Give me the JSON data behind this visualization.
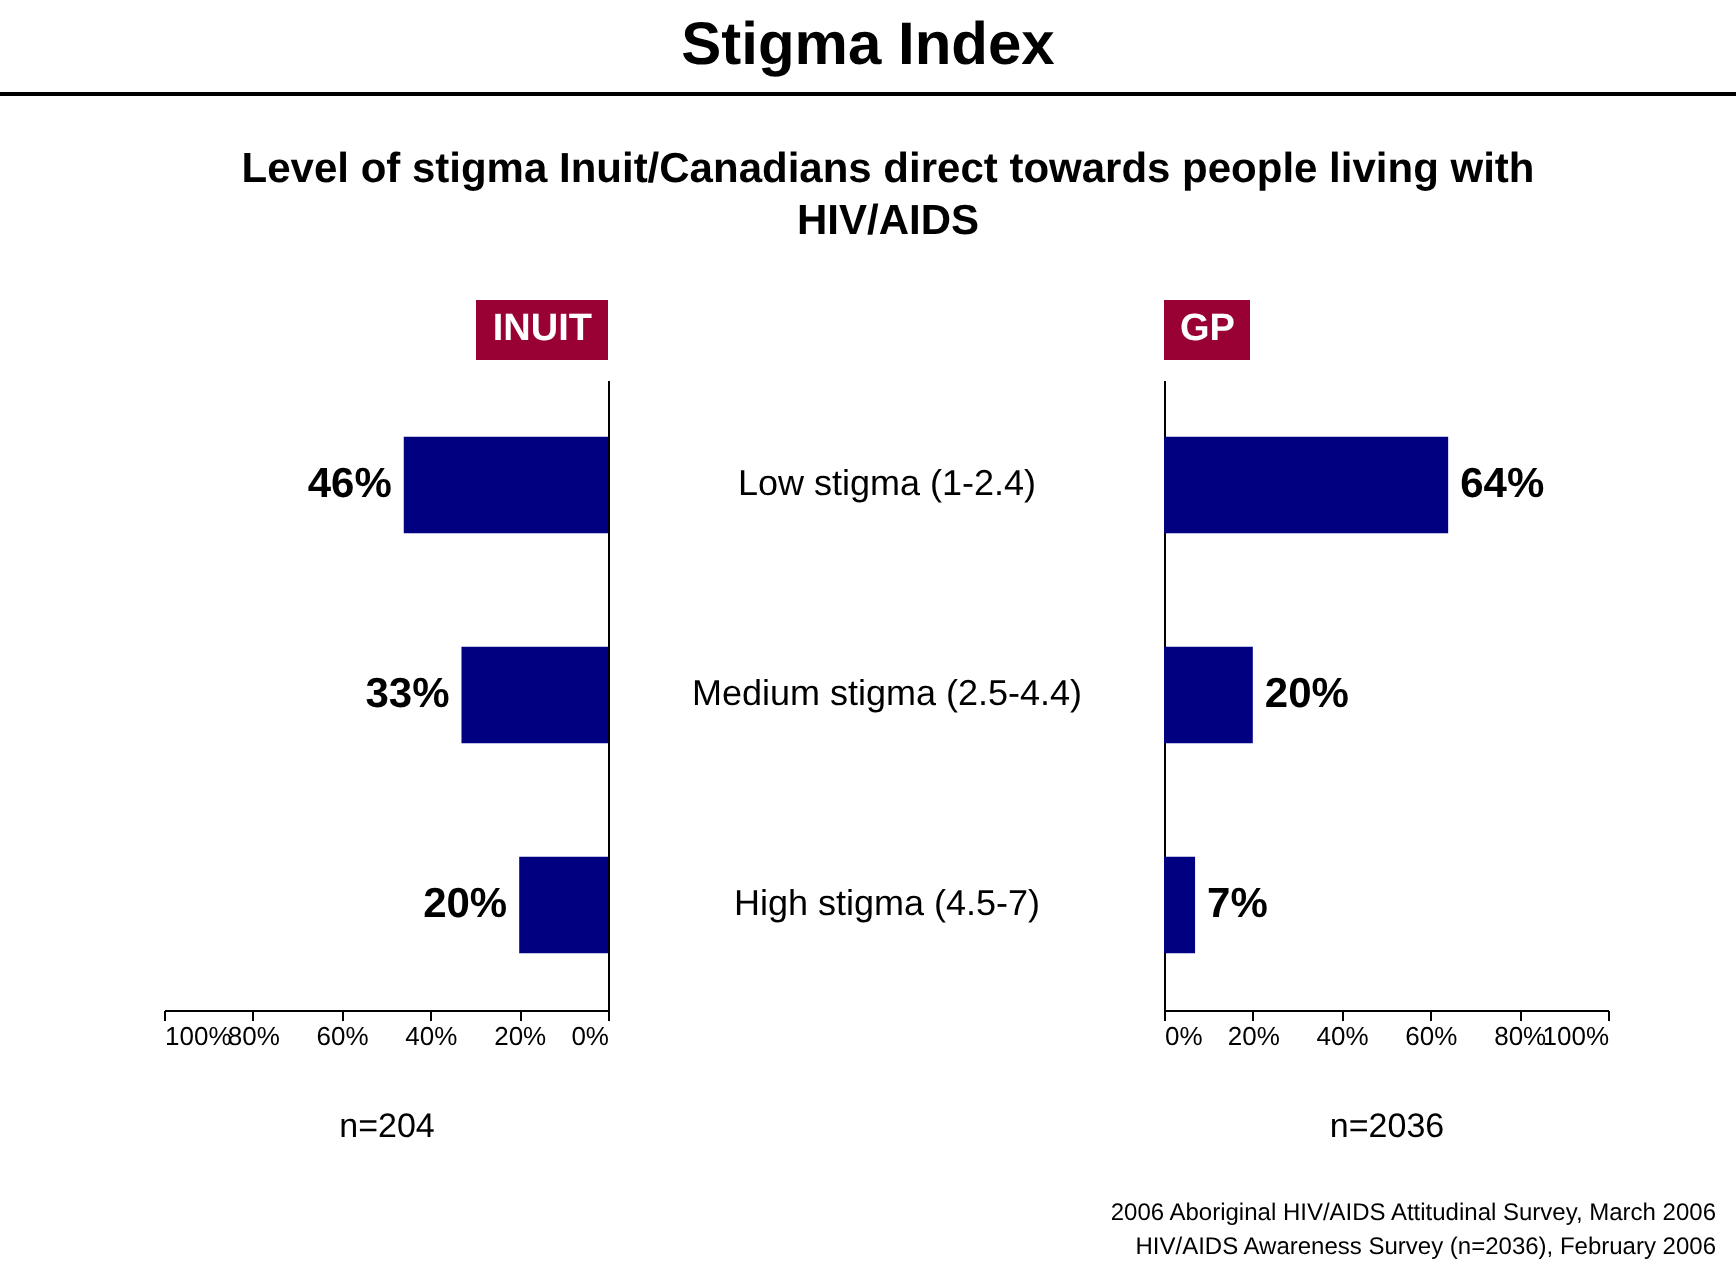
{
  "chart_data": [
    {
      "type": "other",
      "title": "Stigma Index",
      "subtitle": "Level of stigma Inuit/Canadians direct towards people living with HIV/AIDS",
      "annotations": [
        "2006 Aboriginal HIV/AIDS Attitudinal Survey, March 2006",
        "HIV/AIDS Awareness Survey (n=2036), February 2006"
      ]
    },
    {
      "type": "bar",
      "orientation": "horizontal",
      "title": "INUIT",
      "xlabel": "n=204",
      "categories": [
        "Low stigma (1-2.4)",
        "Medium stigma (2.5-4.4)",
        "High stigma (4.5-7)"
      ],
      "values": [
        46,
        33,
        20
      ],
      "value_labels": [
        "46%",
        "33%",
        "20%"
      ],
      "color": "#000080",
      "xlim": [
        100,
        0
      ],
      "xticks": [
        {
          "value": 100,
          "label": "100%"
        },
        {
          "value": 80,
          "label": "80%"
        },
        {
          "value": 60,
          "label": "60%"
        },
        {
          "value": 40,
          "label": "40%"
        },
        {
          "value": 20,
          "label": "20%"
        },
        {
          "value": 0,
          "label": "0%"
        }
      ]
    },
    {
      "type": "bar",
      "orientation": "horizontal",
      "title": "GP",
      "xlabel": "n=2036",
      "tick_labels": "x",
      "values": [
        64,
        20,
        7
      ],
      "value_labels": [
        "64%",
        "20%",
        "7%"
      ],
      "color": "#000080",
      "xlim": [
        0,
        100
      ],
      "xticks": [
        {
          "value": 0,
          "label": "0%"
        },
        {
          "value": 20,
          "label": "20%"
        },
        {
          "value": 40,
          "label": "40%"
        },
        {
          "value": 60,
          "label": "60%"
        },
        {
          "value": 80,
          "label": "80%"
        },
        {
          "value": 100,
          "label": "100%"
        }
      ]
    }
  ]
}
